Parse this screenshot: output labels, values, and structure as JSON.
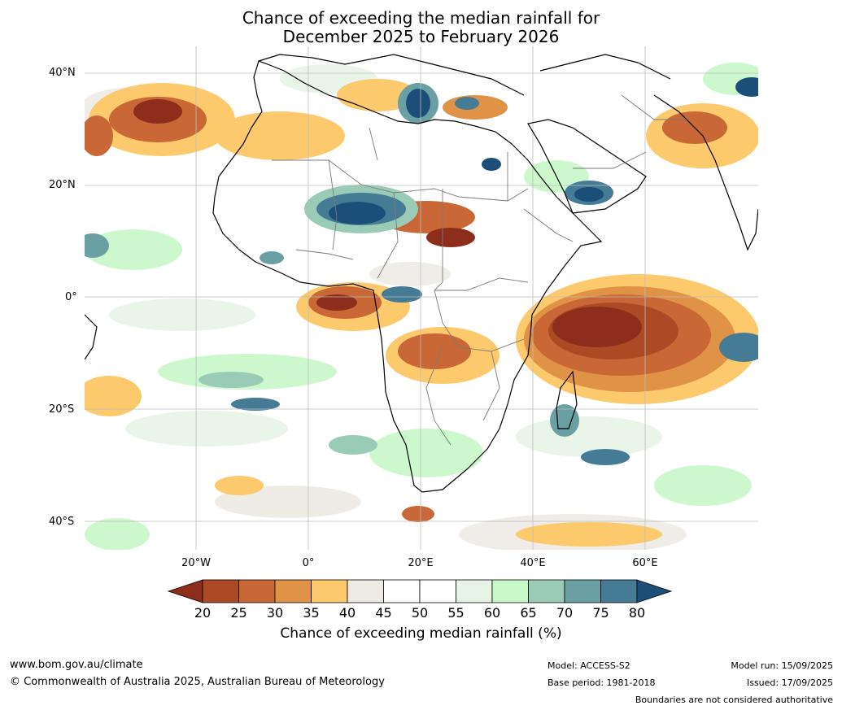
{
  "title_line1": "Chance of exceeding the median rainfall for",
  "title_line2": "December 2025 to February 2026",
  "lat_labels": [
    "40°N",
    "20°N",
    "0°",
    "20°S",
    "40°S"
  ],
  "lon_labels": [
    "20°W",
    "0°",
    "20°E",
    "40°E",
    "60°E"
  ],
  "colorbar": {
    "ticks": [
      "20",
      "25",
      "30",
      "35",
      "40",
      "45",
      "50",
      "55",
      "60",
      "65",
      "70",
      "75",
      "80"
    ],
    "colors": [
      "#8c2e1b",
      "#ad4a26",
      "#c96836",
      "#e09347",
      "#fcc96c",
      "#eeeae4",
      "#ffffff",
      "#ffffff",
      "#e6f4e6",
      "#c8f7c8",
      "#9acbb6",
      "#6a9fa4",
      "#467b96",
      "#1b4f7a"
    ],
    "label": "Chance of exceeding median rainfall (%)"
  },
  "footer": {
    "url": "www.bom.gov.au/climate",
    "copyright": "© Commonwealth of Australia 2025, Australian Bureau of Meteorology",
    "model": "Model: ACCESS-S2",
    "base_period": "Base period: 1981-2018",
    "model_run": "Model run: 15/09/2025",
    "issued": "Issued: 17/09/2025",
    "disclaimer": "Boundaries are not considered authoritative"
  }
}
